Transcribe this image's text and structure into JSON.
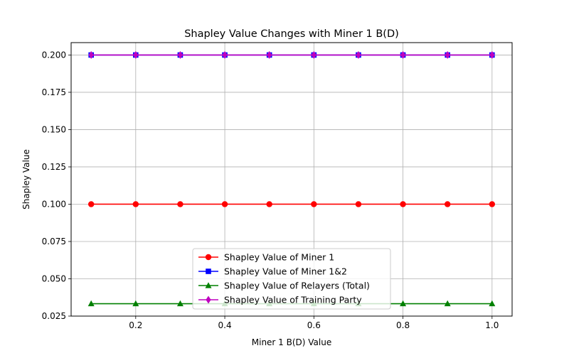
{
  "chart_data": {
    "type": "line",
    "title": "Shapley Value Changes with Miner 1 B(D)",
    "xlabel": "Miner 1 B(D) Value",
    "ylabel": "Shapley Value",
    "x": [
      0.1,
      0.2,
      0.3,
      0.4,
      0.5,
      0.6,
      0.7,
      0.8,
      0.9,
      1.0
    ],
    "xlim": [
      0.055,
      1.045
    ],
    "ylim": [
      0.025,
      0.2083
    ],
    "x_ticks": [
      0.2,
      0.4,
      0.6,
      0.8,
      1.0
    ],
    "x_tick_labels": [
      "0.2",
      "0.4",
      "0.6",
      "0.8",
      "1.0"
    ],
    "y_ticks": [
      0.025,
      0.05,
      0.075,
      0.1,
      0.125,
      0.15,
      0.175,
      0.2
    ],
    "y_tick_labels": [
      "0.025",
      "0.050",
      "0.075",
      "0.100",
      "0.125",
      "0.150",
      "0.175",
      "0.200"
    ],
    "grid": true,
    "legend_position": "lower-center",
    "series": [
      {
        "name": "Shapley Value of Miner 1",
        "color": "#ff0000",
        "marker": "circle",
        "values": [
          0.1,
          0.1,
          0.1,
          0.1,
          0.1,
          0.1,
          0.1,
          0.1,
          0.1,
          0.1
        ]
      },
      {
        "name": "Shapley Value of Miner 1&2",
        "color": "#0000ff",
        "marker": "square",
        "values": [
          0.2,
          0.2,
          0.2,
          0.2,
          0.2,
          0.2,
          0.2,
          0.2,
          0.2,
          0.2
        ]
      },
      {
        "name": "Shapley Value of Relayers (Total)",
        "color": "#008000",
        "marker": "triangle",
        "values": [
          0.0333,
          0.0333,
          0.0333,
          0.0333,
          0.0333,
          0.0333,
          0.0333,
          0.0333,
          0.0333,
          0.0333
        ]
      },
      {
        "name": "Shapley Value of Training Party",
        "color": "#bf00bf",
        "marker": "diamond",
        "values": [
          0.2,
          0.2,
          0.2,
          0.2,
          0.2,
          0.2,
          0.2,
          0.2,
          0.2,
          0.2
        ]
      }
    ]
  }
}
